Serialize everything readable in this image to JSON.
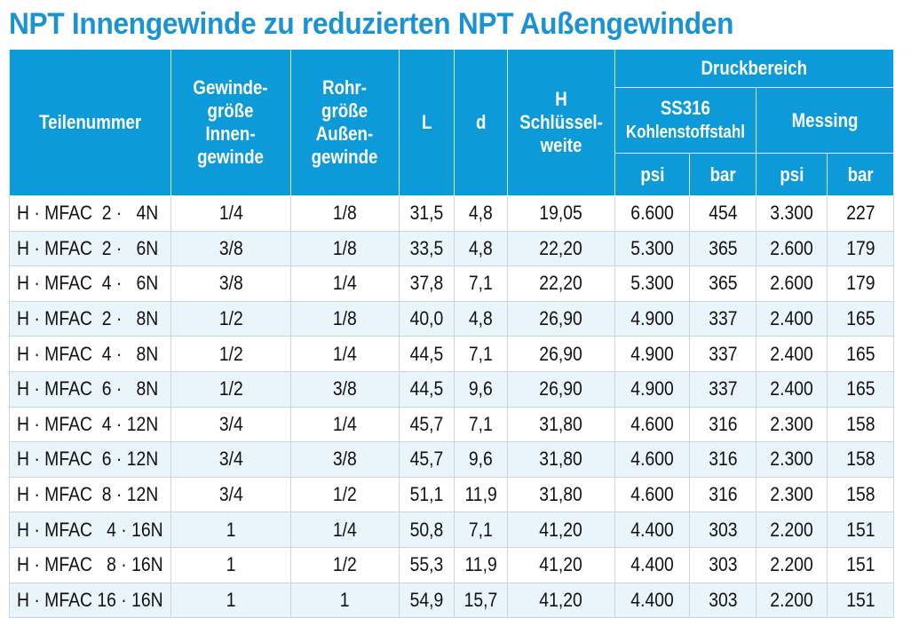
{
  "title": "NPT Innengewinde zu reduzierten NPT Außengewinden",
  "headers": {
    "part": "Teilenummer",
    "thread": [
      "Gewinde-",
      "größe",
      "Innen-",
      "gewinde"
    ],
    "pipe": [
      "Rohr-",
      "größe",
      "Außen-",
      "gewinde"
    ],
    "L": "L",
    "d": "d",
    "H": [
      "H",
      "Schlüssel-",
      "weite"
    ],
    "pressure": "Druckbereich",
    "ss316": "SS316",
    "carbon": "Kohlenstoffstahl",
    "brass": "Messing",
    "psi": "psi",
    "bar": "bar"
  },
  "rows": [
    [
      "H · MFAC  2 ·   4N",
      "1/4",
      "1/8",
      "31,5",
      "4,8",
      "19,05",
      "6.600",
      "454",
      "3.300",
      "227"
    ],
    [
      "H · MFAC  2 ·   6N",
      "3/8",
      "1/8",
      "33,5",
      "4,8",
      "22,20",
      "5.300",
      "365",
      "2.600",
      "179"
    ],
    [
      "H · MFAC  4 ·   6N",
      "3/8",
      "1/4",
      "37,8",
      "7,1",
      "22,20",
      "5.300",
      "365",
      "2.600",
      "179"
    ],
    [
      "H · MFAC  2 ·   8N",
      "1/2",
      "1/8",
      "40,0",
      "4,8",
      "26,90",
      "4.900",
      "337",
      "2.400",
      "165"
    ],
    [
      "H · MFAC  4 ·   8N",
      "1/2",
      "1/4",
      "44,5",
      "7,1",
      "26,90",
      "4.900",
      "337",
      "2.400",
      "165"
    ],
    [
      "H · MFAC  6 ·   8N",
      "1/2",
      "3/8",
      "44,5",
      "9,6",
      "26,90",
      "4.900",
      "337",
      "2.400",
      "165"
    ],
    [
      "H · MFAC  4 · 12N",
      "3/4",
      "1/4",
      "45,7",
      "7,1",
      "31,80",
      "4.600",
      "316",
      "2.300",
      "158"
    ],
    [
      "H · MFAC  6 · 12N",
      "3/4",
      "3/8",
      "45,7",
      "9,6",
      "31,80",
      "4.600",
      "316",
      "2.300",
      "158"
    ],
    [
      "H · MFAC  8 · 12N",
      "3/4",
      "1/2",
      "51,1",
      "11,9",
      "31,80",
      "4.600",
      "316",
      "2.300",
      "158"
    ],
    [
      "H · MFAC   4 · 16N",
      "1",
      "1/4",
      "50,8",
      "7,1",
      "41,20",
      "4.400",
      "303",
      "2.200",
      "151"
    ],
    [
      "H · MFAC   8 · 16N",
      "1",
      "1/2",
      "55,3",
      "11,9",
      "41,20",
      "4.400",
      "303",
      "2.200",
      "151"
    ],
    [
      "H · MFAC 16 · 16N",
      "1",
      "1",
      "54,9",
      "15,7",
      "41,20",
      "4.400",
      "303",
      "2.200",
      "151"
    ]
  ]
}
